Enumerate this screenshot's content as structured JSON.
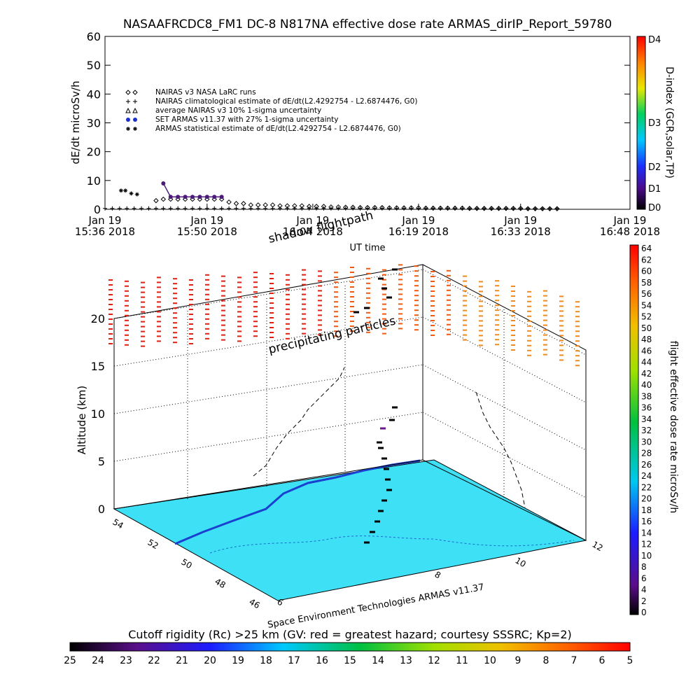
{
  "header": {
    "title": "NASAAFRCDC8_FM1 DC-8    N817NA effective dose rate ARMAS_dirIP_Report_59780"
  },
  "chart_data": [
    {
      "type": "scatter",
      "ylabel": "dE/dt microSv/h",
      "xlabel": "UT time",
      "ylim": [
        0,
        60
      ],
      "yticks": [
        "0",
        "10",
        "20",
        "30",
        "40",
        "50",
        "60"
      ],
      "xticks": [
        {
          "t": 0,
          "l1": "Jan 19",
          "l2": "15:36 2018"
        },
        {
          "t": 14,
          "l1": "Jan 19",
          "l2": "15:50 2018"
        },
        {
          "t": 28.5,
          "l1": "Jan 19",
          "l2": "16:04 2018"
        },
        {
          "t": 43,
          "l1": "Jan 19",
          "l2": "16:19 2018"
        },
        {
          "t": 57,
          "l1": "Jan 19",
          "l2": "16:33 2018"
        },
        {
          "t": 72,
          "l1": "Jan 19",
          "l2": "16:48 2018"
        }
      ],
      "xlim": [
        0,
        72
      ],
      "legend": {
        "placement": "top-left",
        "entries": [
          {
            "symbol": "diamond",
            "label": "NAIRAS v3 NASA LaRC runs"
          },
          {
            "symbol": "plus",
            "label": "NAIRAS climatological estimate of dE/dt(L2.4292754 - L2.6874476, G0)"
          },
          {
            "symbol": "triangle",
            "label": "average NAIRAS v3 10% 1-sigma uncertainty"
          },
          {
            "symbol": "dot",
            "label": "SET ARMAS v11.37 with 27% 1-sigma uncertainty"
          },
          {
            "symbol": "star",
            "label": "ARMAS statistical estimate of dE/dt(L2.4292754 - L2.6874476, G0)"
          }
        ]
      },
      "series": [
        {
          "name": "NAIRAS v3 NASA LaRC runs",
          "symbol": "diamond",
          "color": "#000000",
          "x": [
            7,
            8,
            9,
            10,
            11,
            12,
            13,
            14,
            15,
            16,
            17,
            18,
            19,
            20,
            21,
            22,
            23,
            24,
            25,
            26,
            27,
            28,
            29,
            30,
            31,
            32,
            33,
            34,
            35,
            36,
            37,
            38,
            39,
            40,
            41,
            42,
            43,
            44,
            45,
            46,
            47,
            48,
            49,
            50,
            51,
            52,
            53,
            54,
            55,
            56,
            57,
            58,
            59,
            60,
            61,
            62
          ],
          "y": [
            3,
            3.5,
            3.5,
            3.5,
            3.5,
            3.5,
            3.5,
            3.5,
            3.5,
            3.5,
            2.5,
            2,
            2,
            1.5,
            1.5,
            1.5,
            1.5,
            1.2,
            1.2,
            1.2,
            1.2,
            1,
            1,
            1,
            0.8,
            0.8,
            0.7,
            0.7,
            0.6,
            0.6,
            0.6,
            0.6,
            0.5,
            0.5,
            0.5,
            0.5,
            0.5,
            0.4,
            0.4,
            0.4,
            0.4,
            0.4,
            0.4,
            0.3,
            0.3,
            0.3,
            0.3,
            0.3,
            0.3,
            0.3,
            0.3,
            0.2,
            0.2,
            0.2,
            0.2,
            0.2
          ]
        },
        {
          "name": "ARMAS statistical estimate",
          "symbol": "star",
          "color": "#000000",
          "x": [
            2.2,
            2.8,
            3.6,
            4.4
          ],
          "y": [
            6.5,
            6.5,
            5.5,
            5.2
          ]
        },
        {
          "name": "SET ARMAS v11.37",
          "symbol": "dot",
          "color": "#4b1a7a",
          "x": [
            8,
            9,
            10,
            11,
            12,
            13,
            14,
            15,
            16
          ],
          "y": [
            9,
            4.3,
            4.3,
            4.3,
            4.3,
            4.3,
            4.3,
            4.3,
            4.3
          ]
        },
        {
          "name": "NAIRAS climatological estimate",
          "symbol": "plus",
          "color": "#000000",
          "x": [
            0,
            1,
            2,
            3,
            4,
            5,
            6,
            7,
            8,
            9,
            10,
            11,
            12,
            13,
            14,
            15,
            16,
            17,
            18,
            19,
            20,
            21,
            22,
            23,
            24,
            25,
            26,
            27,
            28,
            29,
            30,
            31,
            32,
            33,
            34,
            35,
            36,
            37,
            38,
            39,
            40,
            41,
            42,
            43,
            44,
            45,
            46,
            47,
            48,
            49,
            50,
            51,
            52,
            53,
            54,
            55,
            56,
            57,
            58,
            59,
            60,
            61,
            62
          ],
          "y": [
            0.3,
            0.3,
            0.3,
            0.3,
            0.3,
            0.3,
            0.3,
            0.3,
            0.3,
            0.3,
            0.3,
            0.3,
            0.3,
            0.3,
            0.3,
            0.3,
            0.3,
            0.3,
            0.3,
            0.3,
            0.3,
            0.3,
            0.3,
            0.3,
            0.3,
            0.3,
            0.3,
            0.3,
            0.3,
            0.3,
            0.3,
            0.3,
            0.3,
            0.3,
            0.3,
            0.3,
            0.3,
            0.3,
            0.3,
            0.3,
            0.3,
            0.3,
            0.3,
            0.3,
            0.3,
            0.3,
            0.3,
            0.3,
            0.3,
            0.3,
            0.3,
            0.3,
            0.3,
            0.3,
            0.3,
            0.3,
            0.3,
            0.3,
            0.3,
            0.3,
            0.3,
            0.3,
            0.3
          ]
        }
      ],
      "colorbar": {
        "label": "D-index (GCR,solar,TP)",
        "ticks": [
          "D4",
          "D3",
          "D2",
          "D1",
          "D0"
        ]
      }
    },
    {
      "type": "scatter",
      "ylabel": "Altitude (km)",
      "zticks": [
        "0",
        "5",
        "10",
        "15",
        "20"
      ],
      "lat_ticks": [
        "54",
        "52",
        "50",
        "48",
        "46"
      ],
      "lon_ticks": [
        "6",
        "8",
        "10",
        "12"
      ],
      "annotations": {
        "shadow": "shadow flightpath",
        "precip": "precipitating particles",
        "credit": "Space Environment Technologies ARMAS v11.37"
      },
      "colorbar": {
        "label": "flight effective dose rate microSv/h",
        "ticks": [
          "64",
          "62",
          "60",
          "58",
          "56",
          "54",
          "52",
          "50",
          "48",
          "46",
          "44",
          "42",
          "40",
          "38",
          "36",
          "34",
          "32",
          "30",
          "28",
          "26",
          "24",
          "22",
          "20",
          "18",
          "16",
          "14",
          "12",
          "10",
          "8",
          "6",
          "4",
          "2",
          "0"
        ]
      }
    },
    {
      "type": "heatmap",
      "title": "Cutoff rigidity (Rc) >25 km (GV: red = greatest hazard; courtesy SSSRC; Kp=2)",
      "ticks": [
        "25",
        "24",
        "23",
        "22",
        "21",
        "20",
        "19",
        "18",
        "17",
        "16",
        "15",
        "14",
        "13",
        "12",
        "11",
        "10",
        "9",
        "8",
        "7",
        "6",
        "5"
      ]
    }
  ]
}
